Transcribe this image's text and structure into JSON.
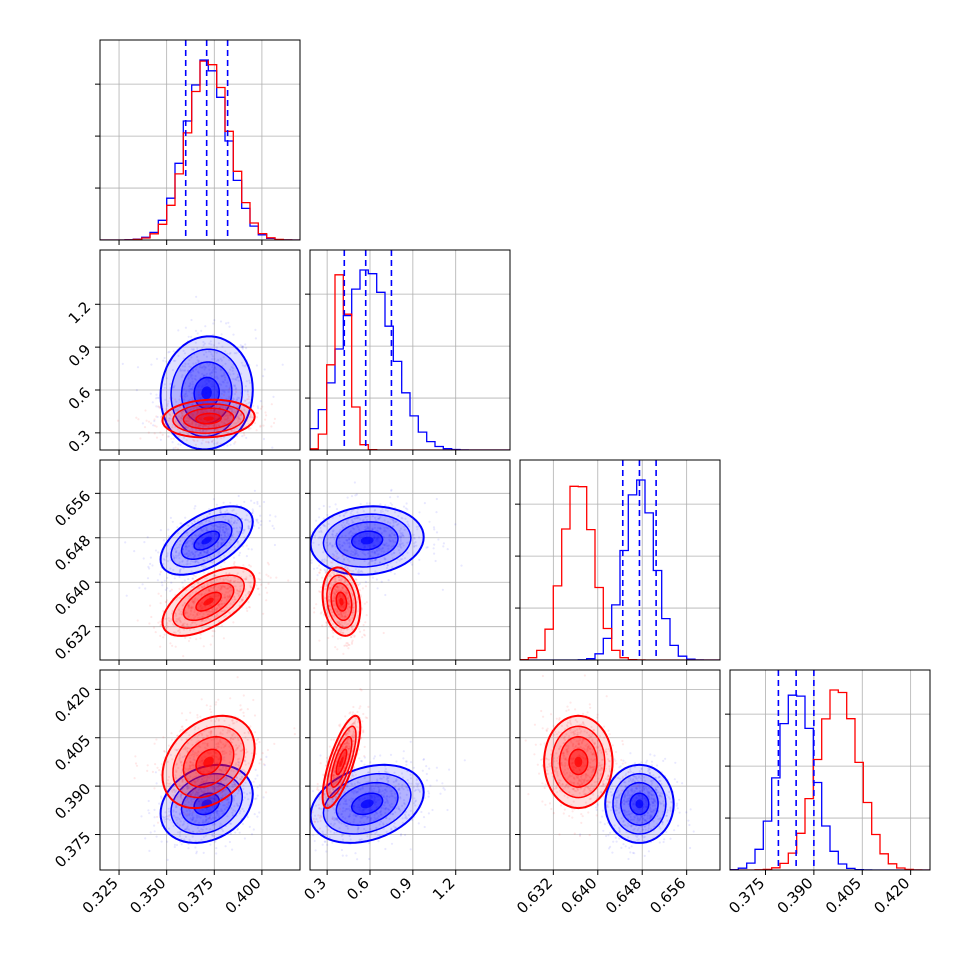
{
  "chart_data": {
    "type": "corner",
    "title": "",
    "grid": true,
    "parameters": [
      {
        "id": "p1",
        "xticks": [
          "0.325",
          "0.350",
          "0.375",
          "0.400"
        ],
        "tick_values": [
          0.325,
          0.35,
          0.375,
          0.4
        ],
        "range": [
          0.315,
          0.42
        ]
      },
      {
        "id": "p2",
        "xticks": [
          "0.3",
          "0.6",
          "0.9",
          "1.2"
        ],
        "yticks": [
          "1.2",
          "0.9",
          "0.6",
          "0.3"
        ],
        "tick_values": [
          0.3,
          0.6,
          0.9,
          1.2
        ],
        "range": [
          0.18,
          1.58
        ]
      },
      {
        "id": "p3",
        "xticks": [
          "0.632",
          "0.640",
          "0.648",
          "0.656"
        ],
        "yticks": [
          "0.656",
          "0.648",
          "0.640",
          "0.632"
        ],
        "tick_values": [
          0.632,
          0.64,
          0.648,
          0.656
        ],
        "range": [
          0.626,
          0.662
        ]
      },
      {
        "id": "p4",
        "xticks": [
          "0.375",
          "0.390",
          "0.405",
          "0.420"
        ],
        "yticks": [
          "0.420",
          "0.405",
          "0.390",
          "0.375"
        ],
        "tick_values": [
          0.375,
          0.39,
          0.405,
          0.42
        ],
        "range": [
          0.364,
          0.426
        ]
      }
    ],
    "series": [
      {
        "color": "#0000ff",
        "means": [
          0.371,
          0.58,
          0.6475,
          0.3845
        ],
        "sigmas": [
          0.011,
          0.18,
          0.0028,
          0.0055
        ],
        "correlations": {
          "1-2": 0.05,
          "1-3": 0.55,
          "2-3": 0.1,
          "1-4": 0.25,
          "2-4": 0.3,
          "3-4": 0.0
        },
        "quantile_lines": [
          [
            0.36,
            0.371,
            0.382
          ],
          [
            0.42,
            0.57,
            0.75
          ],
          [
            0.6445,
            0.6475,
            0.6505
          ],
          [
            0.379,
            0.3845,
            0.39
          ]
        ]
      },
      {
        "color": "#ff0000",
        "means": [
          0.372,
          0.4,
          0.6365,
          0.3975
        ],
        "sigmas": [
          0.011,
          0.06,
          0.0028,
          0.0065
        ],
        "correlations": {
          "1-2": 0.1,
          "1-3": 0.6,
          "2-3": -0.2,
          "1-4": 0.3,
          "2-4": 0.75,
          "3-4": 0.0
        }
      }
    ]
  }
}
